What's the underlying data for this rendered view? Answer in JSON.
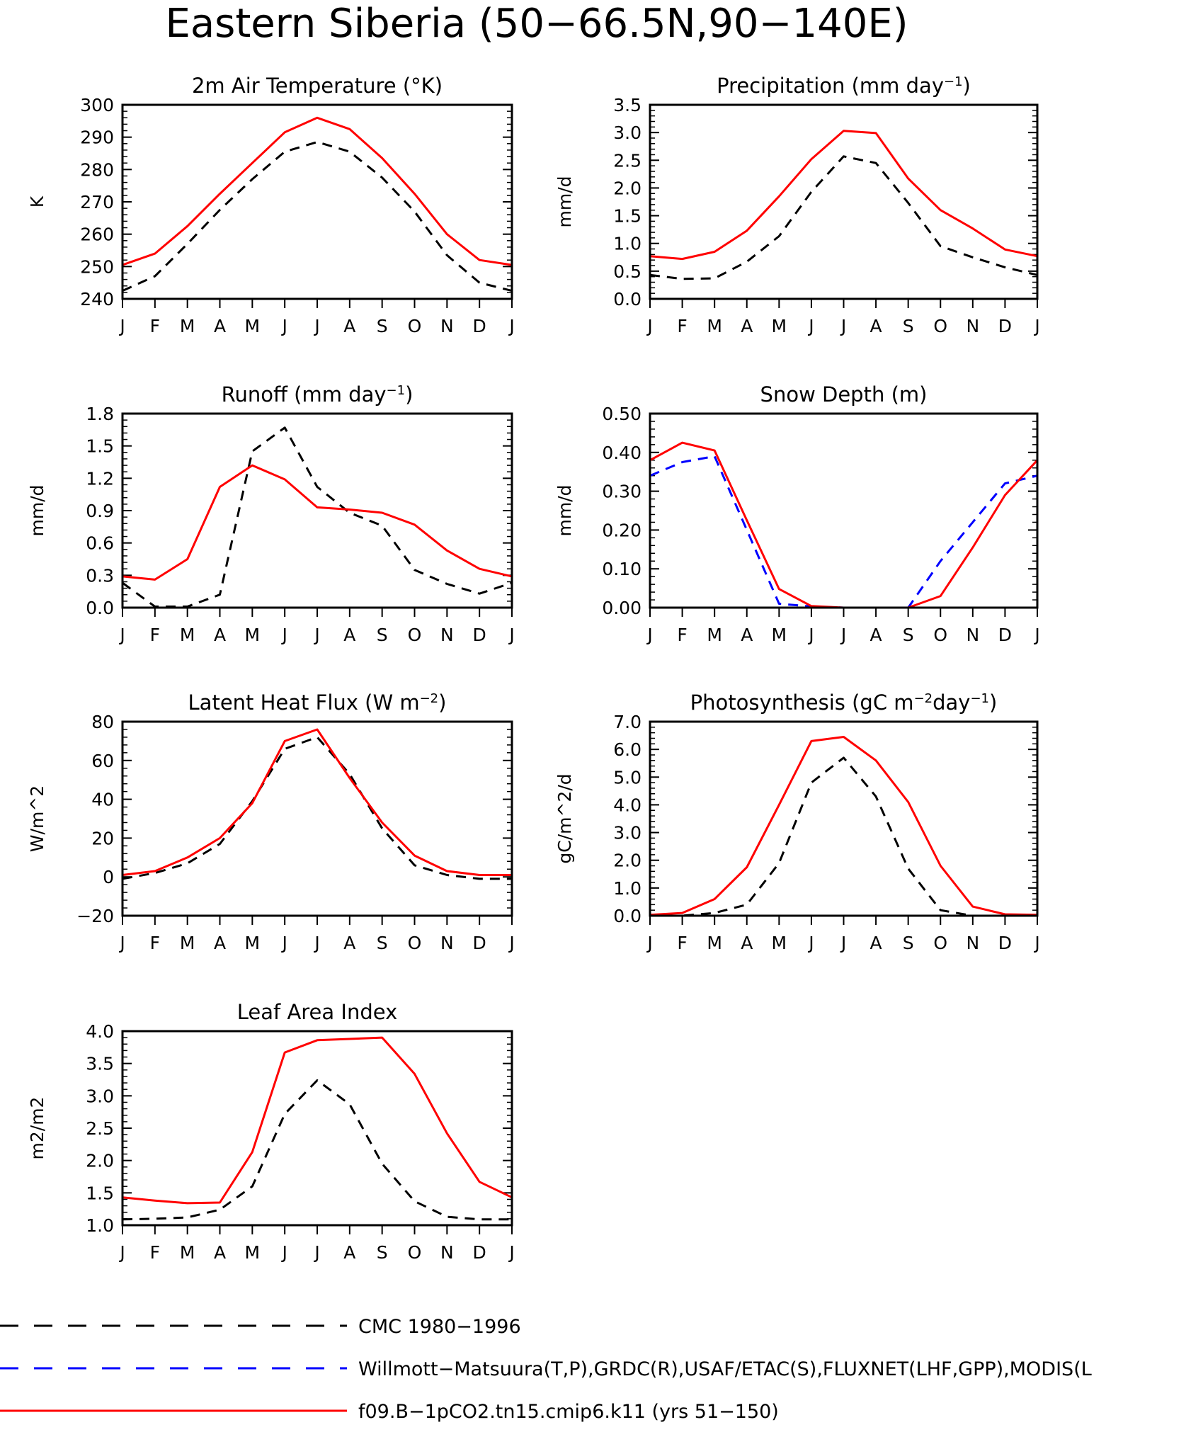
{
  "title": "Eastern Siberia (50−66.5N,90−140E)",
  "months": [
    "J",
    "F",
    "M",
    "A",
    "M",
    "J",
    "J",
    "A",
    "S",
    "O",
    "N",
    "D",
    "J"
  ],
  "colors": {
    "obs_black": "#000000",
    "obs_blue": "#0000ff",
    "model_red": "#ff0000"
  },
  "legend": [
    {
      "label": "CMC 1980−1996",
      "color": "#000000",
      "style": "dashed"
    },
    {
      "label": "Willmott−Matsuura(T,P),GRDC(R),USAF/ETAC(S),FLUXNET(LHF,GPP),MODIS(L",
      "color": "#0000ff",
      "style": "dashed"
    },
    {
      "label": "f09.B−1pCO2.tn15.cmip6.k11 (yrs 51−150)",
      "color": "#ff0000",
      "style": "solid"
    }
  ],
  "chart_data": [
    {
      "type": "line",
      "title_main": "2m Air Temperature (°K)",
      "title_sup": "",
      "ylabel": "K",
      "ylim": [
        240,
        300
      ],
      "yticks": [
        240,
        250,
        260,
        270,
        280,
        290,
        300
      ],
      "ydec": 0,
      "x": [
        "J",
        "F",
        "M",
        "A",
        "M",
        "J",
        "J",
        "A",
        "S",
        "O",
        "N",
        "D",
        "J"
      ],
      "series": [
        {
          "color": "#000000",
          "dash": true,
          "values": [
            242.5,
            247,
            257,
            267.5,
            277,
            285.5,
            288.5,
            285.5,
            277.5,
            267,
            253.5,
            245,
            242.5
          ]
        },
        {
          "color": "#ff0000",
          "dash": false,
          "values": [
            250.5,
            254,
            262.5,
            272.5,
            282,
            291.5,
            296,
            292.5,
            283.5,
            272.5,
            260,
            252,
            250.5
          ]
        }
      ]
    },
    {
      "type": "line",
      "title_main": "Precipitation (mm day",
      "title_sup": "−1",
      "title_end": ")",
      "ylabel": "mm/d",
      "ylim": [
        0,
        3.5
      ],
      "yticks": [
        0,
        0.5,
        1.0,
        1.5,
        2.0,
        2.5,
        3.0,
        3.5
      ],
      "ydec": 1,
      "x": [
        "J",
        "F",
        "M",
        "A",
        "M",
        "J",
        "J",
        "A",
        "S",
        "O",
        "N",
        "D",
        "J"
      ],
      "series": [
        {
          "color": "#000000",
          "dash": true,
          "values": [
            0.43,
            0.36,
            0.37,
            0.67,
            1.13,
            1.93,
            2.57,
            2.45,
            1.73,
            0.95,
            0.75,
            0.57,
            0.43
          ]
        },
        {
          "color": "#ff0000",
          "dash": false,
          "values": [
            0.77,
            0.72,
            0.85,
            1.23,
            1.85,
            2.52,
            3.03,
            2.99,
            2.17,
            1.6,
            1.27,
            0.89,
            0.77
          ]
        }
      ]
    },
    {
      "type": "line",
      "title_main": "Runoff (mm day",
      "title_sup": "−1",
      "title_end": ")",
      "ylabel": "mm/d",
      "ylim": [
        0,
        1.8
      ],
      "yticks": [
        0,
        0.3,
        0.6,
        0.9,
        1.2,
        1.5,
        1.8
      ],
      "ydec": 1,
      "x": [
        "J",
        "F",
        "M",
        "A",
        "M",
        "J",
        "J",
        "A",
        "S",
        "O",
        "N",
        "D",
        "J"
      ],
      "series": [
        {
          "color": "#000000",
          "dash": true,
          "values": [
            0.23,
            0.01,
            0.01,
            0.12,
            1.45,
            1.67,
            1.12,
            0.88,
            0.76,
            0.35,
            0.22,
            0.13,
            0.23
          ]
        },
        {
          "color": "#ff0000",
          "dash": false,
          "values": [
            0.29,
            0.26,
            0.45,
            1.12,
            1.32,
            1.19,
            0.93,
            0.91,
            0.88,
            0.77,
            0.53,
            0.36,
            0.29
          ]
        }
      ]
    },
    {
      "type": "line",
      "title_main": "Snow Depth (m)",
      "title_sup": "",
      "ylabel": "mm/d",
      "ylim": [
        0,
        0.5
      ],
      "yticks": [
        0,
        0.1,
        0.2,
        0.3,
        0.4,
        0.5
      ],
      "ydec": 2,
      "x": [
        "J",
        "F",
        "M",
        "A",
        "M",
        "J",
        "J",
        "A",
        "S",
        "O",
        "N",
        "D",
        "J"
      ],
      "series": [
        {
          "color": "#000000",
          "dash": true,
          "values": [
            0,
            0,
            0,
            0,
            0,
            0,
            0,
            0,
            0,
            0,
            0,
            0,
            0
          ]
        },
        {
          "color": "#0000ff",
          "dash": true,
          "values": [
            0.34,
            0.375,
            0.39,
            0.2,
            0.01,
            0.003,
            0,
            0,
            0,
            0.12,
            0.22,
            0.32,
            0.34
          ]
        },
        {
          "color": "#ff0000",
          "dash": false,
          "values": [
            0.38,
            0.425,
            0.405,
            0.225,
            0.048,
            0.004,
            0,
            0,
            0,
            0.03,
            0.155,
            0.29,
            0.38
          ]
        }
      ]
    },
    {
      "type": "line",
      "title_main": "Latent Heat Flux (W m",
      "title_sup": "−2",
      "title_end": ")",
      "ylabel": "W/m^2",
      "ylim": [
        -20,
        80
      ],
      "yticks": [
        -20,
        0,
        20,
        40,
        60,
        80
      ],
      "ydec": 0,
      "x": [
        "J",
        "F",
        "M",
        "A",
        "M",
        "J",
        "J",
        "A",
        "S",
        "O",
        "N",
        "D",
        "J"
      ],
      "series": [
        {
          "color": "#000000",
          "dash": true,
          "values": [
            -1,
            2,
            7,
            17,
            39,
            66,
            72,
            53,
            25,
            6,
            1,
            -1,
            -1
          ]
        },
        {
          "color": "#ff0000",
          "dash": false,
          "values": [
            1,
            3,
            10,
            20,
            38,
            70,
            76,
            51,
            28,
            11,
            3,
            1,
            1
          ]
        }
      ]
    },
    {
      "type": "line",
      "title_main": "Photosynthesis (gC m",
      "title_sup": "−2",
      "title_mid": "day",
      "title_sup2": "−1",
      "title_end": ")",
      "ylabel": "gC/m^2/d",
      "ylim": [
        0,
        7
      ],
      "yticks": [
        0,
        1,
        2,
        3,
        4,
        5,
        6,
        7
      ],
      "ydec": 1,
      "x": [
        "J",
        "F",
        "M",
        "A",
        "M",
        "J",
        "J",
        "A",
        "S",
        "O",
        "N",
        "D",
        "J"
      ],
      "series": [
        {
          "color": "#000000",
          "dash": true,
          "values": [
            0,
            0,
            0.1,
            0.4,
            1.9,
            4.8,
            5.7,
            4.3,
            1.7,
            0.2,
            0,
            0,
            0
          ]
        },
        {
          "color": "#ff0000",
          "dash": false,
          "values": [
            0.03,
            0.1,
            0.6,
            1.75,
            4,
            6.3,
            6.45,
            5.6,
            4.1,
            1.8,
            0.33,
            0.05,
            0.03
          ]
        }
      ]
    },
    {
      "type": "line",
      "title_main": "Leaf Area Index",
      "title_sup": "",
      "ylabel": "m2/m2",
      "ylim": [
        1,
        4
      ],
      "yticks": [
        1,
        1.5,
        2,
        2.5,
        3,
        3.5,
        4
      ],
      "ydec": 1,
      "x": [
        "J",
        "F",
        "M",
        "A",
        "M",
        "J",
        "J",
        "A",
        "S",
        "O",
        "N",
        "D",
        "J"
      ],
      "series": [
        {
          "color": "#000000",
          "dash": true,
          "values": [
            1.09,
            1.1,
            1.12,
            1.24,
            1.6,
            2.72,
            3.24,
            2.87,
            1.95,
            1.37,
            1.13,
            1.09,
            1.09
          ]
        },
        {
          "color": "#ff0000",
          "dash": false,
          "values": [
            1.43,
            1.38,
            1.34,
            1.35,
            2.13,
            3.67,
            3.86,
            3.88,
            3.9,
            3.34,
            2.42,
            1.67,
            1.43
          ]
        }
      ]
    }
  ]
}
